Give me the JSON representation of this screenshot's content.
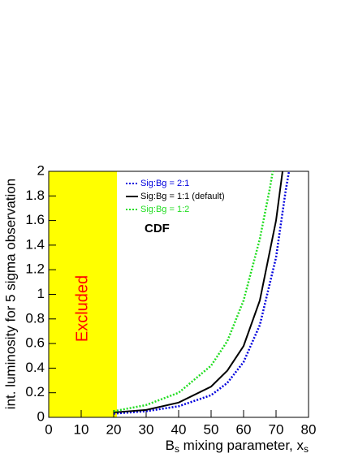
{
  "chart_data": {
    "type": "line",
    "x_label": [
      "B",
      "s",
      " mixing parameter, x",
      "s"
    ],
    "y_label": "int. luminosity for 5 sigma observation",
    "xlim": [
      0,
      80
    ],
    "xticks": [
      0,
      10,
      20,
      30,
      40,
      50,
      60,
      70,
      80
    ],
    "ylim": [
      0,
      2
    ],
    "yticks": [
      0,
      0.2,
      0.4,
      0.6,
      0.8,
      1,
      1.2,
      1.4,
      1.6,
      1.8,
      2
    ],
    "shaded_region": {
      "xlim": [
        0,
        21
      ],
      "color": "#ffff00",
      "label": "Excluded",
      "label_color": "#ff0000"
    },
    "annotation": "CDF",
    "series": [
      {
        "name": "Sig:Bg = 2:1",
        "color": "#0000dd",
        "style": "dotted",
        "x": [
          20,
          30,
          40,
          50,
          55,
          60,
          65,
          70,
          73,
          74
        ],
        "values": [
          0.03,
          0.05,
          0.09,
          0.18,
          0.28,
          0.45,
          0.75,
          1.3,
          1.85,
          2
        ]
      },
      {
        "name": "Sig:Bg = 1:1 (default)",
        "color": "#000000",
        "style": "solid",
        "x": [
          20,
          30,
          40,
          50,
          55,
          60,
          65,
          70,
          72
        ],
        "values": [
          0.04,
          0.06,
          0.12,
          0.25,
          0.38,
          0.58,
          0.95,
          1.6,
          2
        ]
      },
      {
        "name": "Sig:Bg = 1:2",
        "color": "#22dd22",
        "style": "dotted",
        "x": [
          20,
          30,
          40,
          50,
          55,
          60,
          65,
          68,
          69
        ],
        "values": [
          0.05,
          0.1,
          0.2,
          0.42,
          0.62,
          0.95,
          1.45,
          1.85,
          2
        ]
      }
    ]
  }
}
